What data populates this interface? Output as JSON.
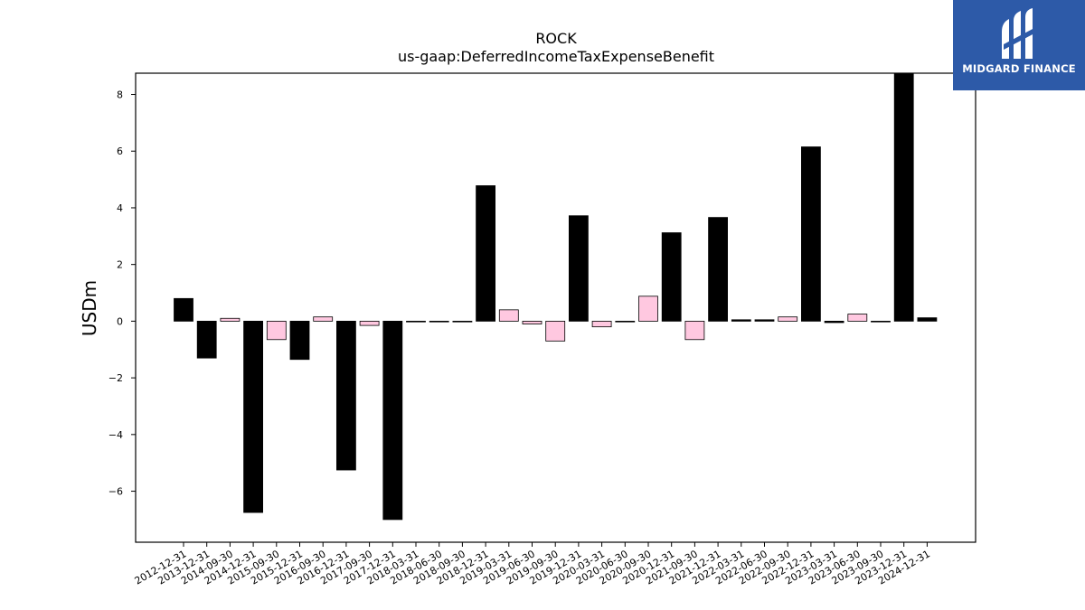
{
  "logo": {
    "text": "MIDGARD FINANCE",
    "background": "#2d5aa8",
    "mark_icon": "midgard-m-icon"
  },
  "chart_data": {
    "type": "bar",
    "title": "ROCK",
    "subtitle": "us-gaap:DeferredIncomeTaxExpenseBenefit",
    "xlabel": "",
    "ylabel": "USDm",
    "ylim": [
      -7.8,
      8.75
    ],
    "yticks": [
      -6,
      -4,
      -2,
      0,
      2,
      4,
      6,
      8
    ],
    "grid": false,
    "colors": {
      "annual": "#000000",
      "quarterly": "#ffc8e0",
      "edge": "#000000"
    },
    "categories": [
      "2012-12-31",
      "2013-12-31",
      "2014-09-30",
      "2014-12-31",
      "2015-09-30",
      "2015-12-31",
      "2016-09-30",
      "2016-12-31",
      "2017-09-30",
      "2017-12-31",
      "2018-03-31",
      "2018-06-30",
      "2018-09-30",
      "2018-12-31",
      "2019-03-31",
      "2019-06-30",
      "2019-09-30",
      "2019-12-31",
      "2020-03-31",
      "2020-06-30",
      "2020-09-30",
      "2020-12-31",
      "2021-09-30",
      "2021-12-31",
      "2022-03-31",
      "2022-06-30",
      "2022-09-30",
      "2022-12-31",
      "2023-03-31",
      "2023-06-30",
      "2023-09-30",
      "2023-12-31",
      "2024-12-31"
    ],
    "values": [
      0.8,
      -1.3,
      0.1,
      -6.75,
      -0.65,
      -1.35,
      0.15,
      -5.25,
      -0.15,
      -7.0,
      0.0,
      0.0,
      0.0,
      4.78,
      0.4,
      -0.1,
      -0.7,
      3.72,
      -0.2,
      0.0,
      0.88,
      3.12,
      -0.65,
      3.66,
      0.05,
      0.05,
      0.15,
      6.15,
      -0.05,
      0.25,
      0.0,
      8.75,
      0.12
    ],
    "period": [
      "annual",
      "annual",
      "quarterly",
      "annual",
      "quarterly",
      "annual",
      "quarterly",
      "annual",
      "quarterly",
      "annual",
      "annual",
      "annual",
      "annual",
      "annual",
      "quarterly",
      "quarterly",
      "quarterly",
      "annual",
      "quarterly",
      "quarterly",
      "quarterly",
      "annual",
      "quarterly",
      "annual",
      "annual",
      "annual",
      "quarterly",
      "annual",
      "annual",
      "quarterly",
      "quarterly",
      "annual",
      "annual"
    ]
  }
}
